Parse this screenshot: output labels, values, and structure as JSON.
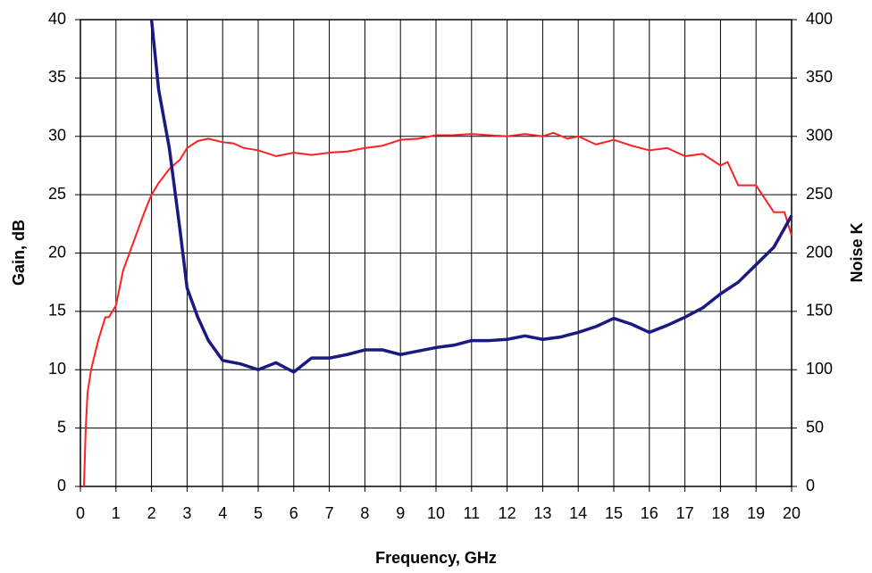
{
  "chart_data": {
    "type": "line",
    "x_label": "Frequency, GHz",
    "y_label": "Gain, dB",
    "y2_label": "Noise K",
    "xlim": [
      0,
      20
    ],
    "xticks": [
      0,
      1,
      2,
      3,
      4,
      5,
      6,
      7,
      8,
      9,
      10,
      11,
      12,
      13,
      14,
      15,
      16,
      17,
      18,
      19,
      20
    ],
    "ylim": [
      0,
      40
    ],
    "yticks": [
      0,
      5,
      10,
      15,
      20,
      25,
      30,
      35,
      40
    ],
    "y2lim": [
      0,
      400
    ],
    "y2ticks": [
      0,
      50,
      100,
      150,
      200,
      250,
      300,
      350,
      400
    ],
    "grid": true,
    "series": [
      {
        "color": "#ff2020",
        "x": [
          0.1,
          0.15,
          0.2,
          0.3,
          0.5,
          0.7,
          0.8,
          1.0,
          1.2,
          1.5,
          1.8,
          2.0,
          2.2,
          2.5,
          2.8,
          3.0,
          3.3,
          3.6,
          4.0,
          4.3,
          4.6,
          5.0,
          5.5,
          6.0,
          6.5,
          7.0,
          7.5,
          8.0,
          8.5,
          9.0,
          9.5,
          10,
          10.5,
          11,
          11.5,
          12,
          12.5,
          13,
          13.3,
          13.7,
          14,
          14.5,
          15,
          15.5,
          16,
          16.5,
          17,
          17.5,
          18,
          18.2,
          18.5,
          19,
          19.5,
          19.8,
          20
        ],
        "values": [
          0,
          5,
          8,
          10,
          12.5,
          14.5,
          14.5,
          15.5,
          18.5,
          21,
          23.5,
          25,
          26,
          27.2,
          28,
          29,
          29.6,
          29.8,
          29.5,
          29.4,
          29,
          28.8,
          28.3,
          28.6,
          28.4,
          28.6,
          28.7,
          29,
          29.2,
          29.7,
          29.8,
          30.1,
          30.1,
          30.2,
          30.1,
          30.0,
          30.2,
          30.0,
          30.3,
          29.8,
          30.0,
          29.3,
          29.7,
          29.2,
          28.8,
          29.0,
          28.3,
          28.5,
          27.5,
          27.8,
          25.8,
          25.8,
          23.5,
          23.5,
          21.5
        ]
      },
      {
        "color": "#1a1a80",
        "axis": "y2",
        "x": [
          2.0,
          2.2,
          2.5,
          2.8,
          3.0,
          3.3,
          3.6,
          4.0,
          4.5,
          5.0,
          5.5,
          6.0,
          6.5,
          7.0,
          7.5,
          8.0,
          8.5,
          9.0,
          9.5,
          10,
          10.5,
          11,
          11.5,
          12,
          12.5,
          13,
          13.5,
          14,
          14.5,
          15,
          15.5,
          16,
          16.5,
          17,
          17.5,
          18,
          18.5,
          19,
          19.5,
          20
        ],
        "values": [
          400,
          340,
          290,
          220,
          170,
          145,
          125,
          108,
          105,
          100,
          106,
          98,
          110,
          110,
          113,
          117,
          117,
          113,
          116,
          119,
          121,
          125,
          125,
          126,
          129,
          126,
          128,
          132,
          137,
          144,
          139,
          132,
          138,
          145,
          153,
          165,
          175,
          190,
          205,
          232
        ]
      }
    ]
  }
}
